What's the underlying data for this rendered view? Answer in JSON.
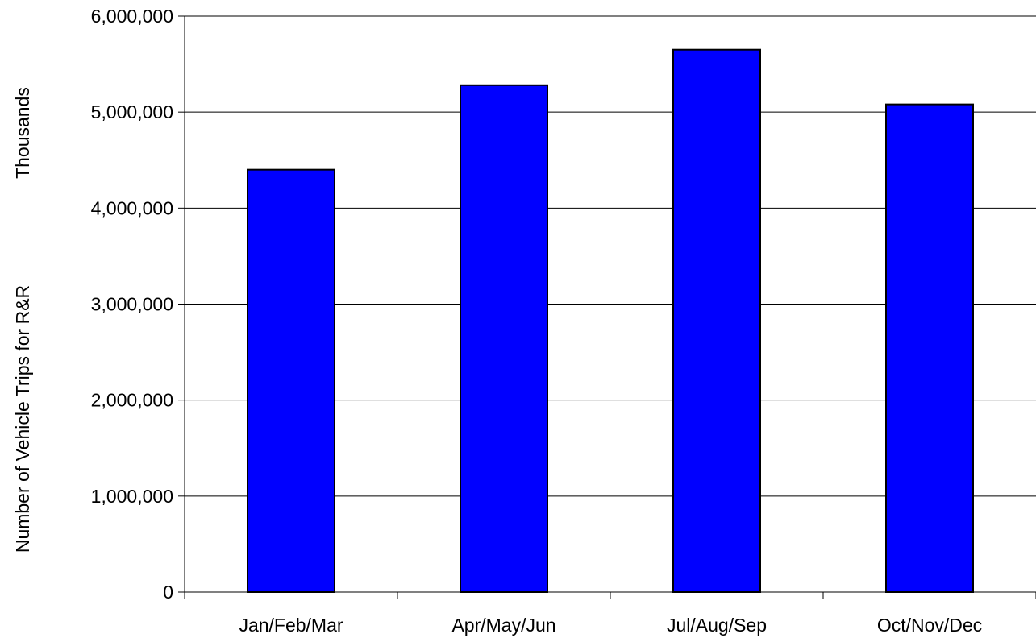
{
  "chart_data": {
    "type": "bar",
    "title": "",
    "xlabel": "",
    "ylabel": "Number of Vehicle Trips for R&R",
    "ylabel_units": "Thousands",
    "categories": [
      "Jan/Feb/Mar",
      "Apr/May/Jun",
      "Jul/Aug/Sep",
      "Oct/Nov/Dec"
    ],
    "values": [
      4400000,
      5280000,
      5650000,
      5080000
    ],
    "ylim": [
      0,
      6000000
    ],
    "yticks": [
      0,
      1000000,
      2000000,
      3000000,
      4000000,
      5000000,
      6000000
    ],
    "ytick_labels": [
      "0",
      "1,000,000",
      "2,000,000",
      "3,000,000",
      "4,000,000",
      "5,000,000",
      "6,000,000"
    ],
    "grid": true,
    "legend": "none",
    "colors": {
      "bar": "#0000ff",
      "bar_border": "#000000",
      "grid": "#000000",
      "background": "#ffffff"
    }
  }
}
